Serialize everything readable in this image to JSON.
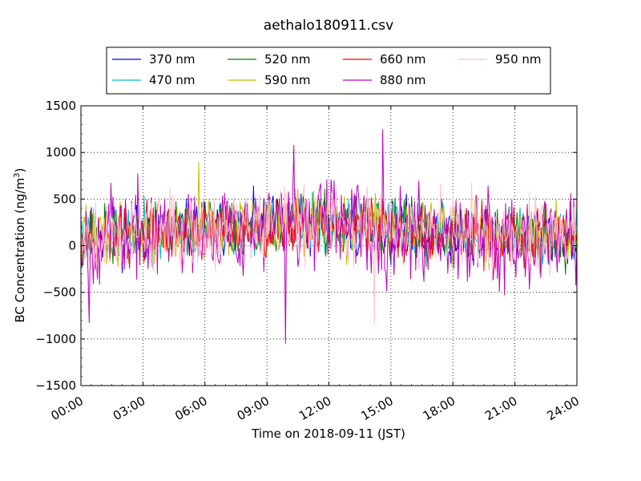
{
  "chart_data": {
    "type": "line",
    "title": "aethalo180911.csv",
    "xlabel": "Time on 2018-09-11 (JST)",
    "ylabel_main": "BC Concentration (ng/m",
    "ylabel_sup": "3",
    "ylabel_close": ")",
    "x_range_hours": [
      0,
      24
    ],
    "ylim": [
      -1500,
      1500
    ],
    "grid": true,
    "legend_position": "top-center-outside",
    "x_ticks": [
      "00:00",
      "03:00",
      "06:00",
      "09:00",
      "12:00",
      "15:00",
      "18:00",
      "21:00",
      "24:00"
    ],
    "y_ticks": [
      "1500",
      "1000",
      "500",
      "0",
      "−500",
      "−1000",
      "−1500"
    ],
    "sample_interval_min": 3,
    "series": [
      {
        "name": "370 nm",
        "color": "#0000ff",
        "amplitude": 190,
        "seed": 11
      },
      {
        "name": "470 nm",
        "color": "#00bfbf",
        "amplitude": 180,
        "seed": 23
      },
      {
        "name": "520 nm",
        "color": "#008000",
        "amplitude": 190,
        "seed": 37
      },
      {
        "name": "590 nm",
        "color": "#bfbf00",
        "amplitude": 200,
        "seed": 41
      },
      {
        "name": "660 nm",
        "color": "#ff0000",
        "amplitude": 180,
        "seed": 53
      },
      {
        "name": "880 nm",
        "color": "#bf00bf",
        "amplitude": 300,
        "seed": 67
      },
      {
        "name": "950 nm",
        "color": "#ffc0cb",
        "amplitude": 260,
        "seed": 79
      }
    ],
    "notable_points": [
      {
        "series": "880 nm",
        "hour": 14.6,
        "value": 1250
      },
      {
        "series": "880 nm",
        "hour": 9.9,
        "value": -1050
      },
      {
        "series": "880 nm",
        "hour": 10.3,
        "value": 1080
      },
      {
        "series": "590 nm",
        "hour": 5.7,
        "value": 900
      },
      {
        "series": "880 nm",
        "hour": 0.4,
        "value": -830
      },
      {
        "series": "950 nm",
        "hour": 14.2,
        "value": -850
      }
    ]
  }
}
